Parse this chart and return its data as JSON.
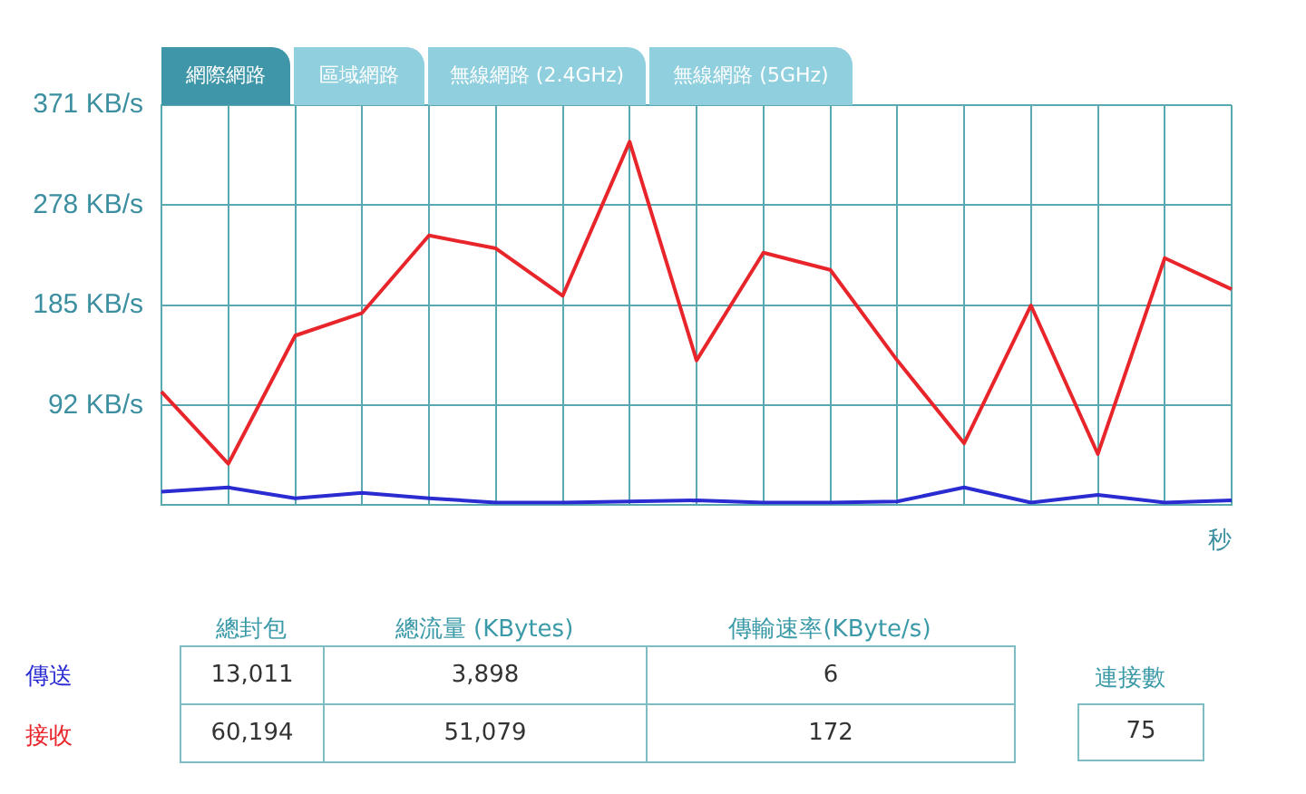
{
  "chart_data": {
    "type": "line",
    "xlabel": "秒",
    "categories": [
      null,
      null,
      null,
      null,
      null,
      null,
      null,
      null,
      null,
      null,
      null,
      null,
      null,
      null,
      null,
      null,
      null
    ],
    "series": [
      {
        "name": "接收",
        "color": "#e8252b",
        "values": [
          105,
          38,
          157,
          178,
          250,
          238,
          194,
          337,
          134,
          234,
          218,
          134,
          57,
          185,
          47,
          229,
          200
        ]
      },
      {
        "name": "傳送",
        "color": "#2a2bd0",
        "values": [
          12,
          16,
          6,
          11,
          6,
          2,
          2,
          3,
          4,
          2,
          2,
          3,
          16,
          2,
          9,
          2,
          4
        ]
      }
    ],
    "ylim": [
      0,
      371
    ],
    "yticks": [
      {
        "value": 92,
        "label": "92 KB/s"
      },
      {
        "value": 185,
        "label": "185 KB/s"
      },
      {
        "value": 278,
        "label": "278 KB/s"
      },
      {
        "value": 371,
        "label": "371 KB/s"
      }
    ],
    "grid": true,
    "marker": "none",
    "line_style": "solid",
    "tick_labels": "y",
    "annotations": [
      "網際網路",
      "區域網路",
      "無線網路 (2.4GHz)",
      "無線網路 (5GHz)",
      "總封包",
      "總流量 (KBytes)",
      "傳輸速率(KByte/s)",
      "13,011",
      "3,898",
      "6",
      "60,194",
      "51,079",
      "172",
      "連接數",
      "75"
    ]
  }
}
